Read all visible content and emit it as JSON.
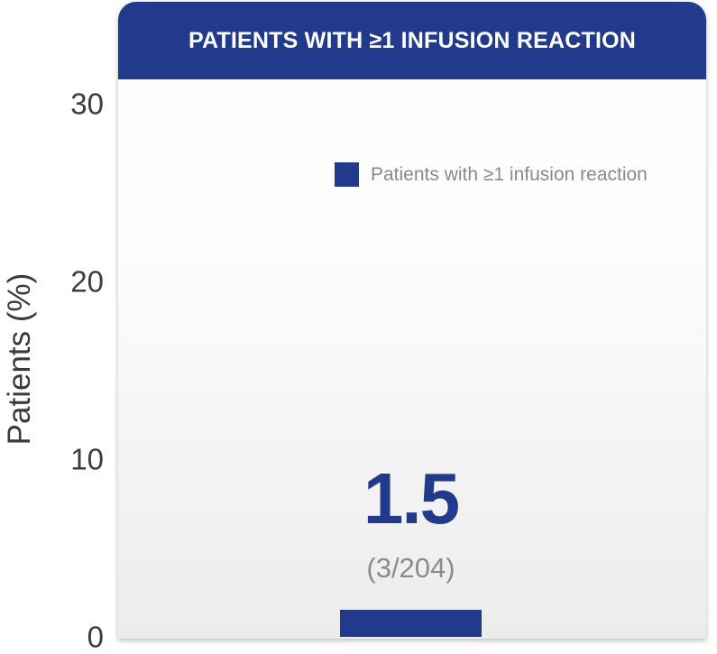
{
  "colors": {
    "brand": "#223a8c",
    "header_text": "#ffffff"
  },
  "header": {
    "title": "PATIENTS WITH ≥1 INFUSION REACTION"
  },
  "legend": {
    "label": "Patients with ≥1 infusion reaction"
  },
  "chart_data": {
    "type": "bar",
    "title": "PATIENTS WITH ≥1 INFUSION REACTION",
    "ylabel": "Patients (%)",
    "xlabel": "",
    "ylim": [
      0,
      30
    ],
    "yticks": [
      "0",
      "10",
      "20",
      "30"
    ],
    "grid": false,
    "legend_position": "top-right",
    "series": [
      {
        "name": "Patients with ≥1 infusion reaction",
        "values": [
          1.5
        ],
        "value_label": "1.5",
        "count_label": "(3/204)",
        "color": "#223a8c"
      }
    ]
  }
}
